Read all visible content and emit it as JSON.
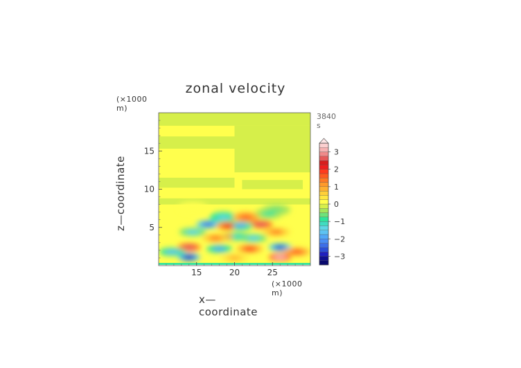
{
  "chart_data": {
    "type": "heatmap",
    "title": "zonal velocity",
    "xlabel": "x—coordinate",
    "ylabel": "z—coordinate",
    "x_unit": "(×1000 m)",
    "z_unit": "(×1000 m)",
    "time_label": "3840 s",
    "xlim": [
      10,
      30
    ],
    "ylim": [
      0,
      20
    ],
    "x_ticks": [
      15,
      20,
      25
    ],
    "y_ticks": [
      5,
      10,
      15
    ],
    "colorbar": {
      "levels": [
        -3.5,
        -3.25,
        -3,
        -2.75,
        -2.5,
        -2.25,
        -2,
        -1.75,
        -1.5,
        -1.25,
        -1,
        -0.75,
        -0.5,
        -0.25,
        0,
        0.25,
        0.5,
        0.75,
        1,
        1.25,
        1.5,
        1.75,
        2,
        2.25,
        2.5,
        2.75,
        3,
        3.25,
        3.5
      ],
      "colors": [
        "#0a0a6e",
        "#10108f",
        "#1f1fbf",
        "#2c4fd6",
        "#3d6ee8",
        "#4a8ef5",
        "#52a8f7",
        "#5ec3f2",
        "#5fd6e6",
        "#40ddc0",
        "#2fe39a",
        "#6ee27a",
        "#a5e65c",
        "#d6ef4a",
        "#ffff4d",
        "#ffe640",
        "#ffcf38",
        "#ffb030",
        "#ff9a2a",
        "#ff7a24",
        "#ff5a20",
        "#ff3b1e",
        "#ef1f1f",
        "#d81e1e",
        "#e65a5a",
        "#f08a8a",
        "#f7b3b3",
        "#fbd0d0"
      ],
      "tick_labels": [
        "3",
        "2",
        "1",
        "0",
        "−1",
        "−2",
        "−3"
      ],
      "tick_values": [
        3,
        2,
        1,
        0,
        -1,
        -2,
        -3
      ]
    },
    "features": [
      {
        "x": 14.5,
        "z": 7.6,
        "value": 0.2
      },
      {
        "x": 24.5,
        "z": 6.8,
        "value": -0.9
      },
      {
        "x": 25.5,
        "z": 7.3,
        "value": -0.7
      },
      {
        "x": 18.5,
        "z": 6.3,
        "value": -1.4
      },
      {
        "x": 21.5,
        "z": 6.3,
        "value": 1.6
      },
      {
        "x": 16.5,
        "z": 5.4,
        "value": -2.5
      },
      {
        "x": 23.5,
        "z": 5.4,
        "value": 2.5
      },
      {
        "x": 19.2,
        "z": 5.2,
        "value": 2.0
      },
      {
        "x": 20.8,
        "z": 5.2,
        "value": -1.8
      },
      {
        "x": 14.5,
        "z": 4.4,
        "value": -1.3
      },
      {
        "x": 25.5,
        "z": 4.4,
        "value": 1.3
      },
      {
        "x": 17.5,
        "z": 3.6,
        "value": 1.3
      },
      {
        "x": 22.5,
        "z": 3.6,
        "value": -1.3
      },
      {
        "x": 14.0,
        "z": 2.4,
        "value": 2.7
      },
      {
        "x": 26.0,
        "z": 2.4,
        "value": -2.7
      },
      {
        "x": 18.0,
        "z": 2.2,
        "value": -1.8
      },
      {
        "x": 22.0,
        "z": 2.2,
        "value": 1.8
      },
      {
        "x": 19.6,
        "z": 3.8,
        "value": 1.2
      },
      {
        "x": 20.4,
        "z": 3.8,
        "value": -1.2
      },
      {
        "x": 14.0,
        "z": 1.1,
        "value": -3.0
      },
      {
        "x": 26.0,
        "z": 1.1,
        "value": 3.0
      },
      {
        "x": 11.8,
        "z": 1.8,
        "value": -1.6
      },
      {
        "x": 28.2,
        "z": 1.8,
        "value": 1.6
      },
      {
        "x": 20.0,
        "z": 1.0,
        "value": 0.8
      }
    ]
  }
}
